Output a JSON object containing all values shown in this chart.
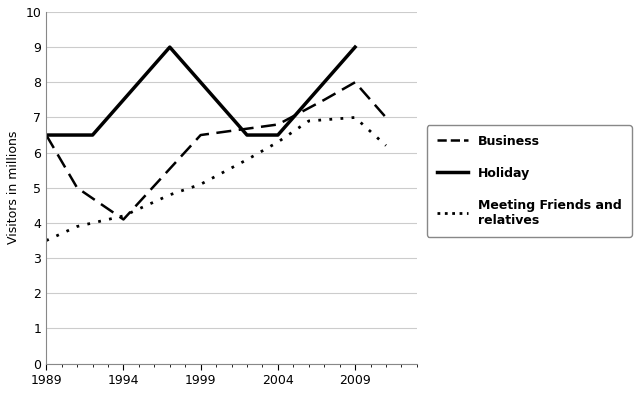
{
  "years_business": [
    1989,
    1991,
    1994,
    1999,
    2004,
    2007,
    2009,
    2011
  ],
  "business": [
    6.5,
    5.0,
    4.1,
    6.5,
    6.8,
    7.5,
    8.0,
    7.0
  ],
  "years_holiday": [
    1989,
    1992,
    1997,
    2002,
    2004,
    2009
  ],
  "holiday": [
    6.5,
    6.5,
    9.0,
    6.5,
    6.5,
    9.0
  ],
  "years_meeting": [
    1989,
    1991,
    1994,
    1997,
    1999,
    2002,
    2004,
    2006,
    2009,
    2011
  ],
  "meeting": [
    3.5,
    3.9,
    4.2,
    4.8,
    5.1,
    5.8,
    6.3,
    6.9,
    7.0,
    6.2
  ],
  "ylabel": "Visitors in millions",
  "ylim": [
    0,
    10
  ],
  "yticks": [
    0,
    1,
    2,
    3,
    4,
    5,
    6,
    7,
    8,
    9,
    10
  ],
  "xticks": [
    1989,
    1994,
    1999,
    2004,
    2009
  ],
  "xlim": [
    1989,
    2013
  ],
  "legend_labels": [
    "Business",
    "Holiday",
    "Meeting Friends and\nrelatives"
  ],
  "background_color": "#ffffff",
  "line_color": "#000000"
}
